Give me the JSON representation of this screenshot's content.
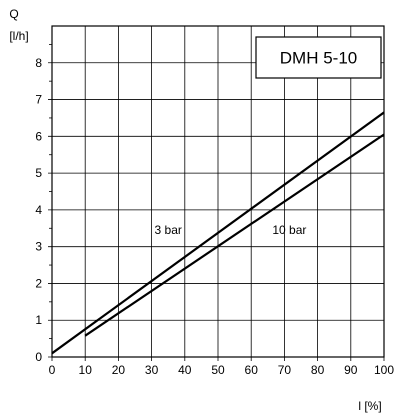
{
  "chart_data": {
    "type": "line",
    "title": "DMH 5-10",
    "ylabel": "Q",
    "yunit": "[l/h]",
    "xlabel": "l [%]",
    "xlim": [
      0,
      100
    ],
    "ylim": [
      0,
      9
    ],
    "xticks": [
      "0",
      "10",
      "20",
      "30",
      "40",
      "50",
      "60",
      "70",
      "80",
      "90",
      "100"
    ],
    "yticks": [
      "0",
      "1",
      "2",
      "3",
      "4",
      "5",
      "6",
      "7",
      "8"
    ],
    "grid": true,
    "series": [
      {
        "name": "3 bar",
        "x": [
          0,
          100
        ],
        "y": [
          0.1,
          6.65
        ]
      },
      {
        "name": "10 bar",
        "x": [
          10,
          100
        ],
        "y": [
          0.58,
          6.05
        ]
      }
    ]
  }
}
